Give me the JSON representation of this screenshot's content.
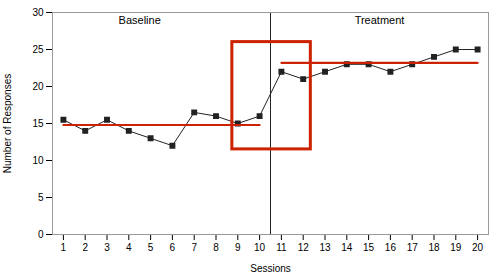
{
  "chart_data": {
    "type": "line",
    "x": [
      1,
      2,
      3,
      4,
      5,
      6,
      7,
      8,
      9,
      10,
      11,
      12,
      13,
      14,
      15,
      16,
      17,
      18,
      19,
      20
    ],
    "values": [
      15.5,
      14,
      15.5,
      14,
      13,
      12,
      16.5,
      16,
      15,
      16,
      22,
      21,
      22,
      23,
      23,
      22,
      23,
      24,
      25,
      25
    ],
    "color": "#222222",
    "marker": "square",
    "xlabel": "Sessions",
    "ylabel": "Number of Responses",
    "xlim": [
      0.5,
      20.5
    ],
    "ylim": [
      0,
      30
    ],
    "xticks": [
      1,
      2,
      3,
      4,
      5,
      6,
      7,
      8,
      9,
      10,
      11,
      12,
      13,
      14,
      15,
      16,
      17,
      18,
      19,
      20
    ],
    "yticks": [
      0,
      5,
      10,
      15,
      20,
      25,
      30
    ],
    "grid": false,
    "trend_lines": [
      {
        "x": [
          1,
          10
        ],
        "values": [
          14.8,
          14.8
        ],
        "color": "#cc2200"
      },
      {
        "x": [
          11,
          20
        ],
        "values": [
          23.2,
          23.2
        ],
        "color": "#cc2200"
      }
    ],
    "phase_line": {
      "x": 10.5,
      "color": "#222222"
    },
    "highlight": {
      "x": 8.75,
      "y": 11.5,
      "width": 3.6,
      "height": 14.5,
      "color": "#cc2200"
    },
    "annotations": [
      {
        "text": "Baseline",
        "x": 4.5,
        "y": 29.5
      },
      {
        "text": "Treatment",
        "x": 15.5,
        "y": 29.5
      }
    ]
  }
}
